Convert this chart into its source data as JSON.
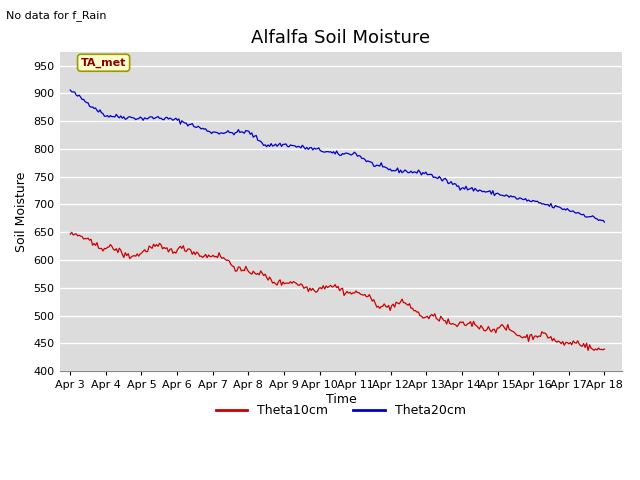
{
  "title": "Alfalfa Soil Moisture",
  "subtitle": "No data for f_Rain",
  "xlabel": "Time",
  "ylabel": "Soil Moisture",
  "annotation": "TA_met",
  "ylim": [
    400,
    975
  ],
  "yticks": [
    400,
    450,
    500,
    550,
    600,
    650,
    700,
    750,
    800,
    850,
    900,
    950
  ],
  "x_tick_labels": [
    "Apr 3",
    "Apr 4",
    "Apr 5",
    "Apr 6",
    "Apr 7",
    "Apr 8",
    "Apr 9",
    "Apr 10",
    "Apr 11",
    "Apr 12",
    "Apr 13",
    "Apr 14",
    "Apr 15",
    "Apr 16",
    "Apr 17",
    "Apr 18"
  ],
  "legend_labels": [
    "Theta10cm",
    "Theta20cm"
  ],
  "line_colors": [
    "#cc0000",
    "#0000cc"
  ],
  "plot_bg": "#dcdcdc",
  "fig_bg": "#ffffff",
  "title_fontsize": 13,
  "axis_label_fontsize": 9,
  "tick_fontsize": 8
}
